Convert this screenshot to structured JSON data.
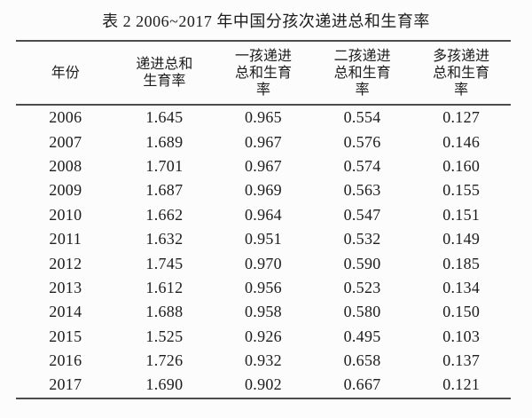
{
  "page": {
    "title": "表 2 2006~2017 年中国分孩次递进总和生育率"
  },
  "table": {
    "headers": [
      [
        "年份"
      ],
      [
        "递进总和",
        "生育率"
      ],
      [
        "一孩递进",
        "总和生育",
        "率"
      ],
      [
        "二孩递进",
        "总和生育",
        "率"
      ],
      [
        "多孩递进",
        "总和生育",
        "率"
      ]
    ],
    "rows": [
      [
        "2006",
        "1.645",
        "0.965",
        "0.554",
        "0.127"
      ],
      [
        "2007",
        "1.689",
        "0.967",
        "0.576",
        "0.146"
      ],
      [
        "2008",
        "1.701",
        "0.967",
        "0.574",
        "0.160"
      ],
      [
        "2009",
        "1.687",
        "0.969",
        "0.563",
        "0.155"
      ],
      [
        "2010",
        "1.662",
        "0.964",
        "0.547",
        "0.151"
      ],
      [
        "2011",
        "1.632",
        "0.951",
        "0.532",
        "0.149"
      ],
      [
        "2012",
        "1.745",
        "0.970",
        "0.590",
        "0.185"
      ],
      [
        "2013",
        "1.612",
        "0.956",
        "0.523",
        "0.134"
      ],
      [
        "2014",
        "1.688",
        "0.958",
        "0.580",
        "0.150"
      ],
      [
        "2015",
        "1.525",
        "0.926",
        "0.495",
        "0.103"
      ],
      [
        "2016",
        "1.726",
        "0.932",
        "0.658",
        "0.137"
      ],
      [
        "2017",
        "1.690",
        "0.902",
        "0.667",
        "0.121"
      ]
    ]
  },
  "colors": {
    "background": "#fcfcfc",
    "text": "#1c1c1c",
    "rule": "#4d4d4d"
  }
}
